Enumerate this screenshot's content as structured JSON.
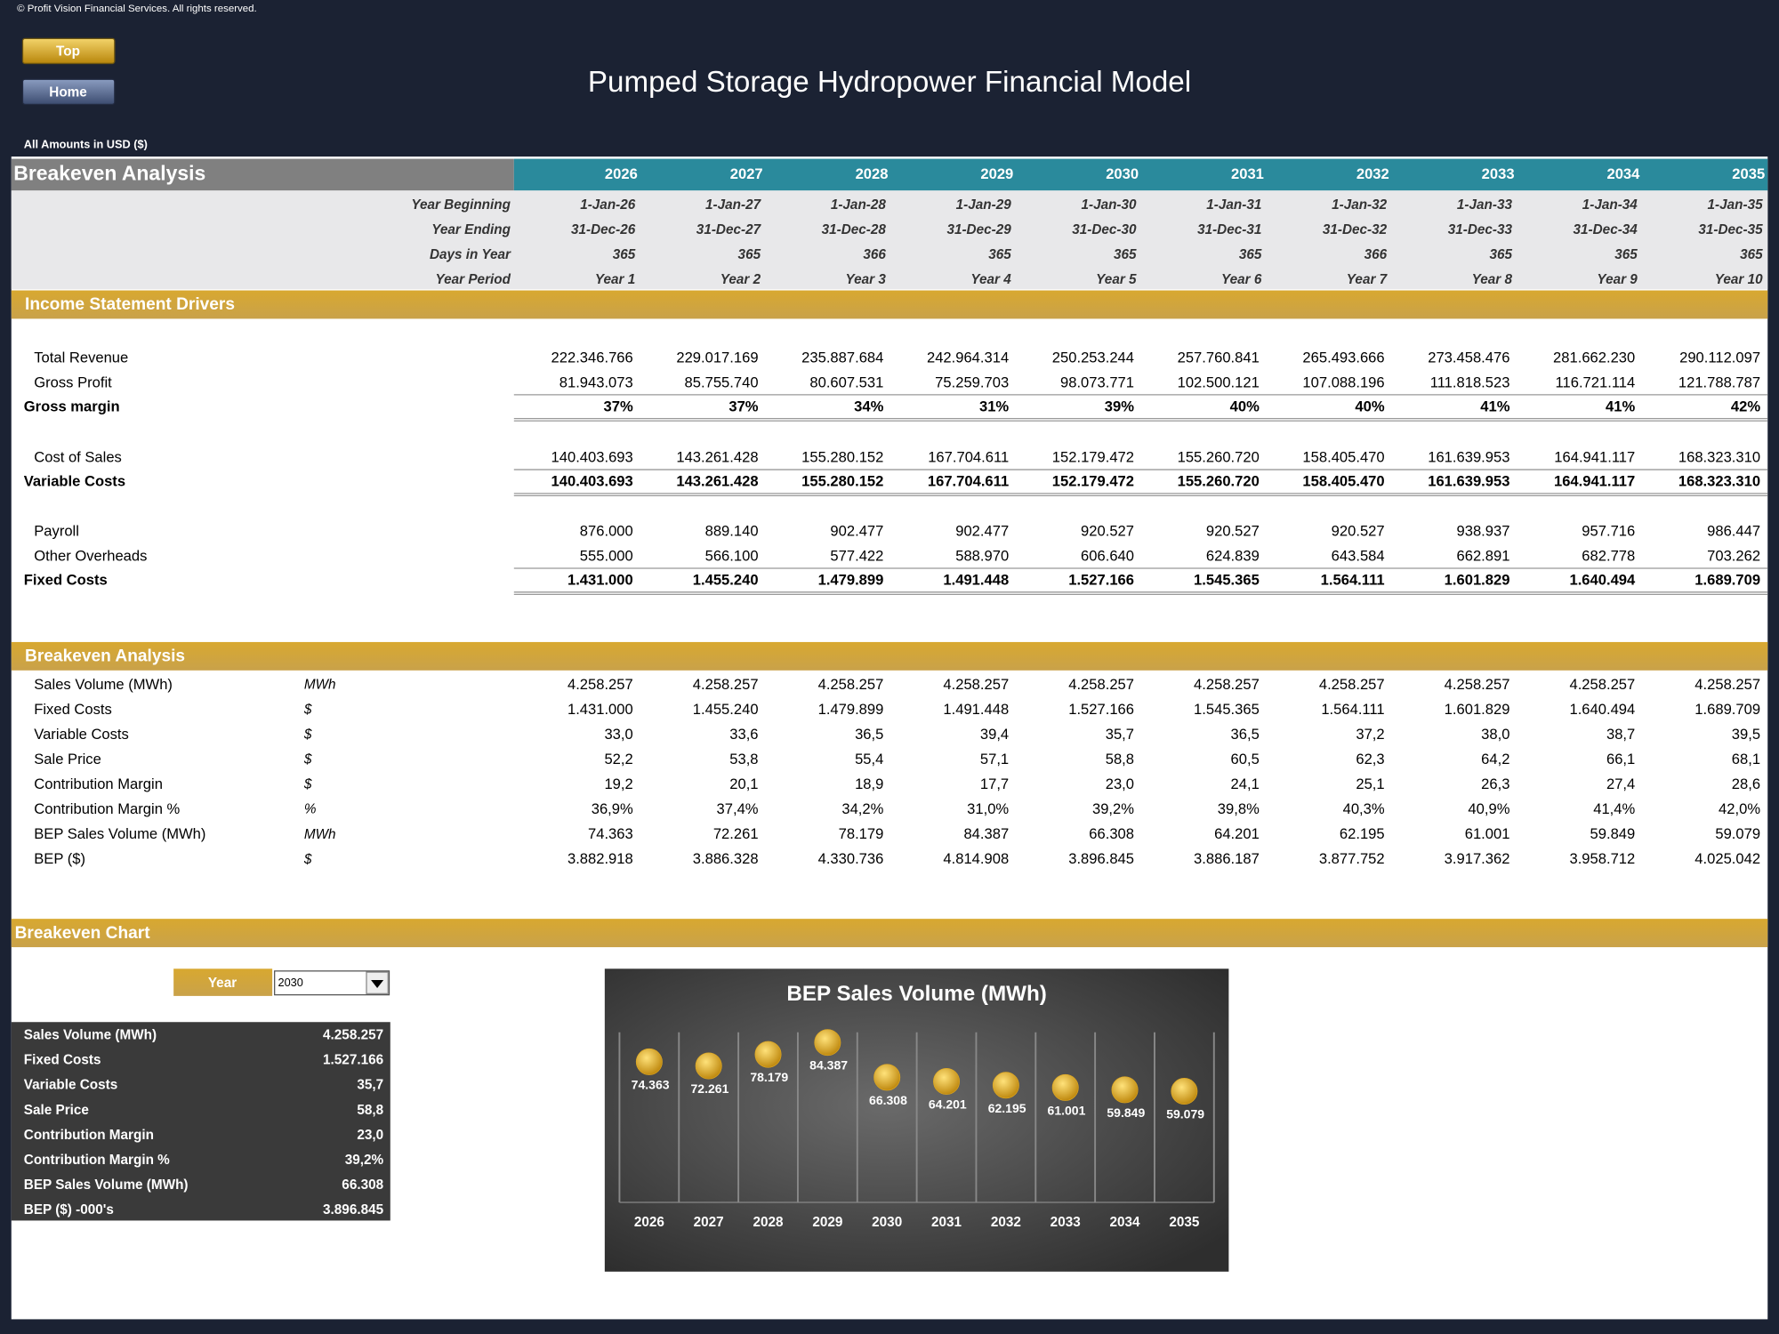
{
  "copyright": "© Profit Vision Financial Services. All rights reserved.",
  "buttons": [
    "Top",
    "Home"
  ],
  "title": "Pumped Storage Hydropower Financial Model",
  "amounts_label": "All Amounts in  USD ($)",
  "header": {
    "title": "Breakeven Analysis",
    "years": [
      "2026",
      "2027",
      "2028",
      "2029",
      "2030",
      "2031",
      "2032",
      "2033",
      "2034",
      "2035"
    ],
    "rows": [
      {
        "label": "Year Beginning",
        "values": [
          "1-Jan-26",
          "1-Jan-27",
          "1-Jan-28",
          "1-Jan-29",
          "1-Jan-30",
          "1-Jan-31",
          "1-Jan-32",
          "1-Jan-33",
          "1-Jan-34",
          "1-Jan-35"
        ]
      },
      {
        "label": "Year Ending",
        "values": [
          "31-Dec-26",
          "31-Dec-27",
          "31-Dec-28",
          "31-Dec-29",
          "31-Dec-30",
          "31-Dec-31",
          "31-Dec-32",
          "31-Dec-33",
          "31-Dec-34",
          "31-Dec-35"
        ]
      },
      {
        "label": "Days in Year",
        "values": [
          "365",
          "365",
          "366",
          "365",
          "365",
          "365",
          "366",
          "365",
          "365",
          "365"
        ]
      },
      {
        "label": "Year Period",
        "values": [
          "Year 1",
          "Year 2",
          "Year 3",
          "Year 4",
          "Year 5",
          "Year 6",
          "Year 7",
          "Year 8",
          "Year 9",
          "Year 10"
        ]
      }
    ]
  },
  "income": {
    "title": "Income Statement Drivers",
    "rows": [
      {
        "label": "Total Revenue",
        "values": [
          "222.346.766",
          "229.017.169",
          "235.887.684",
          "242.964.314",
          "250.253.244",
          "257.760.841",
          "265.493.666",
          "273.458.476",
          "281.662.230",
          "290.112.097"
        ]
      },
      {
        "label": "Gross Profit",
        "values": [
          "81.943.073",
          "85.755.740",
          "80.607.531",
          "75.259.703",
          "98.073.771",
          "102.500.121",
          "107.088.196",
          "111.818.523",
          "116.721.114",
          "121.788.787"
        ]
      },
      {
        "label": "Gross margin",
        "bold": true,
        "values": [
          "37%",
          "37%",
          "34%",
          "31%",
          "39%",
          "40%",
          "40%",
          "41%",
          "41%",
          "42%"
        ]
      },
      {
        "label": "Cost of Sales",
        "values": [
          "140.403.693",
          "143.261.428",
          "155.280.152",
          "167.704.611",
          "152.179.472",
          "155.260.720",
          "158.405.470",
          "161.639.953",
          "164.941.117",
          "168.323.310"
        ]
      },
      {
        "label": "Variable Costs",
        "bold": true,
        "values": [
          "140.403.693",
          "143.261.428",
          "155.280.152",
          "167.704.611",
          "152.179.472",
          "155.260.720",
          "158.405.470",
          "161.639.953",
          "164.941.117",
          "168.323.310"
        ]
      },
      {
        "label": "Payroll",
        "values": [
          "876.000",
          "889.140",
          "902.477",
          "902.477",
          "920.527",
          "920.527",
          "920.527",
          "938.937",
          "957.716",
          "986.447"
        ]
      },
      {
        "label": "Other Overheads",
        "values": [
          "555.000",
          "566.100",
          "577.422",
          "588.970",
          "606.640",
          "624.839",
          "643.584",
          "662.891",
          "682.778",
          "703.262"
        ]
      },
      {
        "label": "Fixed Costs",
        "bold": true,
        "values": [
          "1.431.000",
          "1.455.240",
          "1.479.899",
          "1.491.448",
          "1.527.166",
          "1.545.365",
          "1.564.111",
          "1.601.829",
          "1.640.494",
          "1.689.709"
        ]
      }
    ]
  },
  "breakeven": {
    "title": "Breakeven Analysis",
    "rows": [
      {
        "label": "Sales Volume (MWh)",
        "unit": "MWh",
        "values": [
          "4.258.257",
          "4.258.257",
          "4.258.257",
          "4.258.257",
          "4.258.257",
          "4.258.257",
          "4.258.257",
          "4.258.257",
          "4.258.257",
          "4.258.257"
        ]
      },
      {
        "label": "Fixed Costs",
        "unit": "$",
        "values": [
          "1.431.000",
          "1.455.240",
          "1.479.899",
          "1.491.448",
          "1.527.166",
          "1.545.365",
          "1.564.111",
          "1.601.829",
          "1.640.494",
          "1.689.709"
        ]
      },
      {
        "label": "Variable Costs",
        "unit": "$",
        "values": [
          "33,0",
          "33,6",
          "36,5",
          "39,4",
          "35,7",
          "36,5",
          "37,2",
          "38,0",
          "38,7",
          "39,5"
        ]
      },
      {
        "label": "Sale Price",
        "unit": "$",
        "values": [
          "52,2",
          "53,8",
          "55,4",
          "57,1",
          "58,8",
          "60,5",
          "62,3",
          "64,2",
          "66,1",
          "68,1"
        ]
      },
      {
        "label": "Contribution Margin",
        "unit": "$",
        "values": [
          "19,2",
          "20,1",
          "18,9",
          "17,7",
          "23,0",
          "24,1",
          "25,1",
          "26,3",
          "27,4",
          "28,6"
        ]
      },
      {
        "label": "Contribution Margin %",
        "unit": "%",
        "values": [
          "36,9%",
          "37,4%",
          "34,2%",
          "31,0%",
          "39,2%",
          "39,8%",
          "40,3%",
          "40,9%",
          "41,4%",
          "42,0%"
        ]
      },
      {
        "label": "BEP Sales Volume (MWh)",
        "unit": "MWh",
        "values": [
          "74.363",
          "72.261",
          "78.179",
          "84.387",
          "66.308",
          "64.201",
          "62.195",
          "61.001",
          "59.849",
          "59.079"
        ]
      },
      {
        "label": "BEP ($)",
        "unit": "$",
        "values": [
          "3.882.918",
          "3.886.328",
          "4.330.736",
          "4.814.908",
          "3.896.845",
          "3.886.187",
          "3.877.752",
          "3.917.362",
          "3.958.712",
          "4.025.042"
        ]
      }
    ]
  },
  "breakeven_chart": {
    "title": "Breakeven Chart",
    "selector_label": "Year",
    "selected": "2030",
    "summary": [
      {
        "label": "Sales Volume (MWh)",
        "value": "4.258.257"
      },
      {
        "label": "Fixed Costs",
        "value": "1.527.166"
      },
      {
        "label": "Variable Costs",
        "value": "35,7"
      },
      {
        "label": "Sale Price",
        "value": "58,8"
      },
      {
        "label": "Contribution Margin",
        "value": "23,0"
      },
      {
        "label": "Contribution Margin %",
        "value": "39,2%"
      },
      {
        "label": "BEP Sales Volume (MWh)",
        "value": "66.308"
      },
      {
        "label": "BEP ($) -000's",
        "value": "3.896.845"
      }
    ]
  },
  "chart_data": {
    "type": "dot",
    "title": "BEP Sales Volume (MWh)",
    "categories": [
      "2026",
      "2027",
      "2028",
      "2029",
      "2030",
      "2031",
      "2032",
      "2033",
      "2034",
      "2035"
    ],
    "values": [
      74363,
      72261,
      78179,
      84387,
      66308,
      64201,
      62195,
      61001,
      59849,
      59079
    ],
    "value_labels": [
      "74.363",
      "72.261",
      "78.179",
      "84.387",
      "66.308",
      "64.201",
      "62.195",
      "61.001",
      "59.849",
      "59.079"
    ],
    "color": "#e0a820"
  }
}
